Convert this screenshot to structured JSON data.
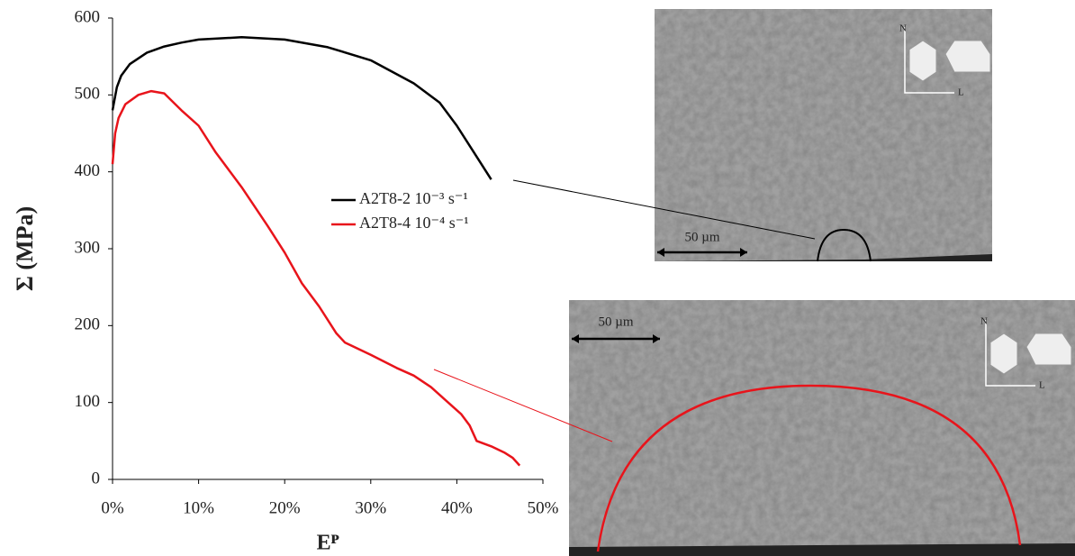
{
  "chart_data": {
    "type": "line",
    "ylabel": "Σ (MPa)",
    "xlabel": "Eᴾ",
    "xlim": [
      0,
      50
    ],
    "ylim": [
      0,
      600
    ],
    "xticks": [
      {
        "value": 0,
        "label": "0%"
      },
      {
        "value": 10,
        "label": "10%"
      },
      {
        "value": 20,
        "label": "20%"
      },
      {
        "value": 30,
        "label": "30%"
      },
      {
        "value": 40,
        "label": "40%"
      },
      {
        "value": 50,
        "label": "50%"
      }
    ],
    "yticks": [
      0,
      100,
      200,
      300,
      400,
      500,
      600
    ],
    "grid": false,
    "legend": "center",
    "series": [
      {
        "name": "A2T8-2 10⁻³ s⁻¹",
        "color": "#000000",
        "x": [
          0,
          0.5,
          1,
          2,
          4,
          6,
          8,
          10,
          15,
          20,
          25,
          30,
          35,
          38,
          40,
          42,
          44
        ],
        "values": [
          480,
          510,
          525,
          540,
          555,
          563,
          568,
          572,
          575,
          572,
          562,
          545,
          515,
          490,
          460,
          425,
          390
        ]
      },
      {
        "name": "A2T8-4 10⁻⁴ s⁻¹",
        "color": "#e8141b",
        "x": [
          0,
          0.3,
          0.7,
          1.5,
          3,
          4.5,
          6,
          8,
          10,
          12,
          15,
          18,
          20,
          22,
          24,
          26,
          27,
          30,
          33,
          35,
          37,
          39,
          40.5,
          41.5,
          42.3,
          44,
          45.5,
          46.5,
          47.3
        ],
        "values": [
          410,
          450,
          470,
          488,
          500,
          505,
          502,
          480,
          460,
          425,
          380,
          330,
          295,
          255,
          225,
          190,
          178,
          162,
          145,
          135,
          120,
          100,
          85,
          70,
          50,
          43,
          35,
          28,
          18
        ]
      }
    ]
  },
  "micrographs": [
    {
      "scale_bar": "50 µm",
      "axis_n": "N",
      "axis_l": "L"
    },
    {
      "scale_bar": "50 µm",
      "axis_n": "N",
      "axis_l": "L"
    }
  ]
}
